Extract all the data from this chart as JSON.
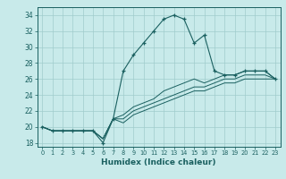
{
  "xlabel": "Humidex (Indice chaleur)",
  "ylabel": "",
  "background_color": "#c8eaea",
  "grid_color": "#a0cccc",
  "line_color": "#1a6060",
  "xlim": [
    -0.5,
    23.5
  ],
  "ylim": [
    17.5,
    35
  ],
  "xticks": [
    0,
    1,
    2,
    3,
    4,
    5,
    6,
    7,
    8,
    9,
    10,
    11,
    12,
    13,
    14,
    15,
    16,
    17,
    18,
    19,
    20,
    21,
    22,
    23
  ],
  "yticks": [
    18,
    20,
    22,
    24,
    26,
    28,
    30,
    32,
    34
  ],
  "main_y": [
    20,
    19.5,
    19.5,
    19.5,
    19.5,
    19.5,
    18,
    21,
    27,
    29,
    30.5,
    32,
    33.5,
    34,
    33.5,
    30.5,
    31.5,
    27,
    26.5,
    26.5,
    27,
    27,
    27,
    26
  ],
  "line2_y": [
    20,
    19.5,
    19.5,
    19.5,
    19.5,
    19.5,
    18.5,
    21,
    21.5,
    22.5,
    23,
    23.5,
    24.5,
    25,
    25.5,
    26,
    25.5,
    26,
    26.5,
    26.5,
    27,
    27,
    27,
    26
  ],
  "line3_y": [
    20,
    19.5,
    19.5,
    19.5,
    19.5,
    19.5,
    18.5,
    21,
    21,
    22,
    22.5,
    23,
    23.5,
    24,
    24.5,
    25,
    25,
    25.5,
    26,
    26,
    26.5,
    26.5,
    26.5,
    26
  ],
  "line4_y": [
    20,
    19.5,
    19.5,
    19.5,
    19.5,
    19.5,
    18.5,
    21,
    20.5,
    21.5,
    22,
    22.5,
    23,
    23.5,
    24,
    24.5,
    24.5,
    25,
    25.5,
    25.5,
    26,
    26,
    26,
    26
  ]
}
